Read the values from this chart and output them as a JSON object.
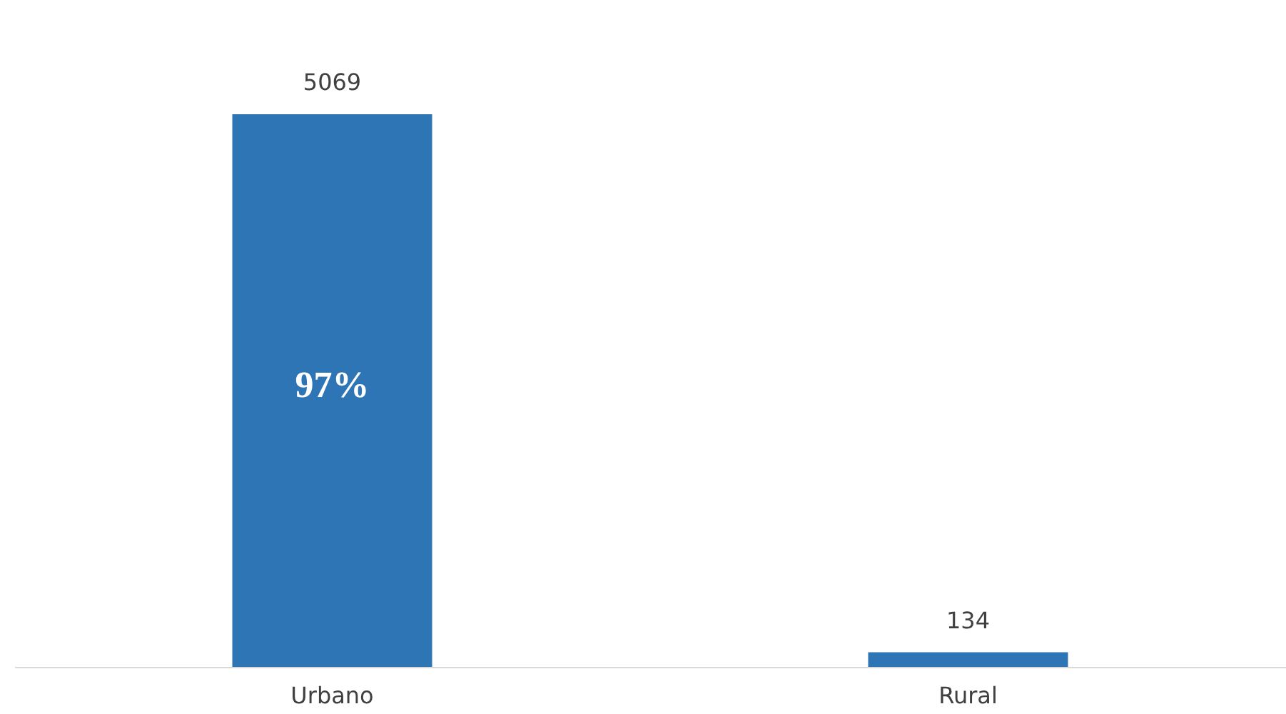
{
  "chart_data": {
    "type": "bar",
    "categories": [
      "Urbano",
      "Rural"
    ],
    "values": [
      5069,
      134
    ],
    "color": "#2e75b6",
    "data_labels": true,
    "annotations": [
      "97%"
    ],
    "grid": false
  }
}
